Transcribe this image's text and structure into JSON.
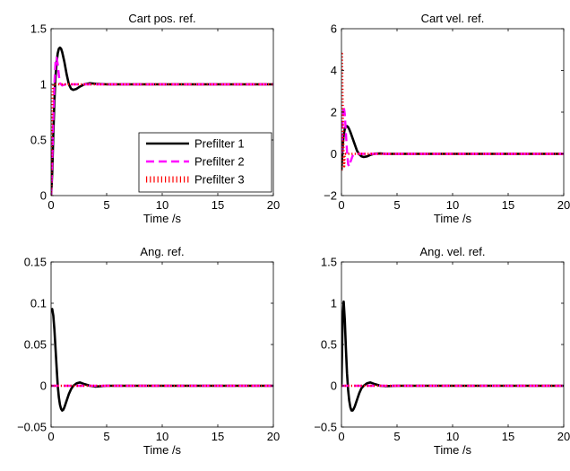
{
  "chart_data": [
    {
      "type": "line",
      "title": "Cart pos. ref.",
      "xlabel": "Time /s",
      "ylabel": "",
      "xlim": [
        0,
        20
      ],
      "ylim": [
        0,
        1.5
      ],
      "xticks": [
        0,
        5,
        10,
        15,
        20
      ],
      "xtick_labels": [
        "0",
        "5",
        "10",
        "15",
        "20"
      ],
      "yticks": [
        0,
        0.5,
        1,
        1.5
      ],
      "ytick_labels": [
        "0",
        "0.5",
        "1",
        "1.5"
      ],
      "grid": false,
      "legend": {
        "placement": "bottom-right",
        "entries": [
          "Prefilter 1",
          "Prefilter 2",
          "Prefilter 3"
        ]
      },
      "series": [
        {
          "name": "Prefilter 1",
          "color": "#000000",
          "style": "solid",
          "x": [
            0,
            0.1,
            0.2,
            0.3,
            0.4,
            0.5,
            0.6,
            0.7,
            0.8,
            0.9,
            1.0,
            1.2,
            1.4,
            1.6,
            1.8,
            2.0,
            2.3,
            2.6,
            3.0,
            3.5,
            4.0,
            5.0,
            6.0,
            20
          ],
          "y": [
            0,
            0.2,
            0.55,
            0.85,
            1.07,
            1.2,
            1.28,
            1.32,
            1.33,
            1.32,
            1.29,
            1.2,
            1.09,
            1.0,
            0.96,
            0.95,
            0.96,
            0.98,
            1.0,
            1.01,
            1.005,
            1.0,
            1.0,
            1.0
          ]
        },
        {
          "name": "Prefilter 2",
          "color": "#ff00ff",
          "style": "dashed",
          "x": [
            0,
            0.1,
            0.2,
            0.3,
            0.4,
            0.5,
            0.6,
            0.7,
            0.8,
            1.0,
            1.3,
            1.6,
            2.0,
            20
          ],
          "y": [
            0,
            0.3,
            0.7,
            1.0,
            1.2,
            1.24,
            1.18,
            1.08,
            1.01,
            0.99,
            1.0,
            1.0,
            1.0,
            1.0
          ]
        },
        {
          "name": "Prefilter 3",
          "color": "#ff0000",
          "style": "dotted",
          "x": [
            0,
            0.05,
            0.1,
            0.15,
            0.2,
            0.3,
            0.4,
            0.6,
            20
          ],
          "y": [
            0,
            0.4,
            0.75,
            0.95,
            1.0,
            1.0,
            1.0,
            1.0,
            1.0
          ]
        }
      ]
    },
    {
      "type": "line",
      "title": "Cart vel. ref.",
      "xlabel": "Time /s",
      "ylabel": "",
      "xlim": [
        0,
        20
      ],
      "ylim": [
        -2,
        6
      ],
      "xticks": [
        0,
        5,
        10,
        15,
        20
      ],
      "xtick_labels": [
        "0",
        "5",
        "10",
        "15",
        "20"
      ],
      "yticks": [
        -2,
        0,
        2,
        4,
        6
      ],
      "ytick_labels": [
        "−2",
        "0",
        "2",
        "4",
        "6"
      ],
      "grid": false,
      "series": [
        {
          "name": "Prefilter 1",
          "color": "#000000",
          "style": "solid",
          "x": [
            0,
            0.1,
            0.2,
            0.3,
            0.4,
            0.5,
            0.6,
            0.7,
            0.8,
            0.9,
            1.0,
            1.2,
            1.4,
            1.6,
            1.8,
            2.0,
            2.3,
            2.6,
            3.0,
            3.5,
            4.0,
            5.0,
            20
          ],
          "y": [
            -0.8,
            0.3,
            0.9,
            1.2,
            1.32,
            1.33,
            1.28,
            1.18,
            1.05,
            0.9,
            0.75,
            0.45,
            0.15,
            -0.02,
            -0.12,
            -0.15,
            -0.12,
            -0.05,
            0.01,
            0.02,
            0.0,
            0.0,
            0.0
          ]
        },
        {
          "name": "Prefilter 2",
          "color": "#ff00ff",
          "style": "dashed",
          "x": [
            0,
            0.1,
            0.2,
            0.3,
            0.4,
            0.5,
            0.6,
            0.7,
            0.8,
            1.0,
            1.3,
            1.6,
            20
          ],
          "y": [
            0,
            1.5,
            2.3,
            1.9,
            1.0,
            0.1,
            -0.5,
            -0.6,
            -0.4,
            -0.1,
            0.02,
            0.0,
            0.0
          ]
        },
        {
          "name": "Prefilter 3",
          "color": "#ff0000",
          "style": "dotted",
          "x": [
            0,
            0.05,
            0.1,
            0.15,
            0.2,
            0.25,
            0.3,
            0.4,
            20
          ],
          "y": [
            -0.8,
            4.8,
            3.0,
            1.0,
            0.0,
            -0.6,
            0.0,
            0.0,
            0.0
          ]
        }
      ]
    },
    {
      "type": "line",
      "title": "Ang. ref.",
      "xlabel": "Time /s",
      "ylabel": "",
      "xlim": [
        0,
        20
      ],
      "ylim": [
        -0.05,
        0.15
      ],
      "xticks": [
        0,
        5,
        10,
        15,
        20
      ],
      "xtick_labels": [
        "0",
        "5",
        "10",
        "15",
        "20"
      ],
      "yticks": [
        -0.05,
        0,
        0.05,
        0.1,
        0.15
      ],
      "ytick_labels": [
        "−0.05",
        "0",
        "0.05",
        "0.1",
        "0.15"
      ],
      "grid": false,
      "series": [
        {
          "name": "Prefilter 1",
          "color": "#000000",
          "style": "solid",
          "x": [
            0,
            0.1,
            0.2,
            0.3,
            0.4,
            0.5,
            0.6,
            0.7,
            0.8,
            0.9,
            1.0,
            1.1,
            1.2,
            1.4,
            1.6,
            1.8,
            2.0,
            2.3,
            2.6,
            3.0,
            3.5,
            4.0,
            5.0,
            20
          ],
          "y": [
            0.09,
            0.093,
            0.085,
            0.068,
            0.045,
            0.022,
            0.0,
            -0.014,
            -0.023,
            -0.028,
            -0.03,
            -0.029,
            -0.026,
            -0.018,
            -0.01,
            -0.004,
            0.0,
            0.003,
            0.004,
            0.002,
            0.0,
            -0.001,
            0.0,
            0.0
          ]
        },
        {
          "name": "Prefilter 2",
          "color": "#ff00ff",
          "style": "dashed",
          "x": [
            0,
            20
          ],
          "y": [
            0,
            0
          ]
        },
        {
          "name": "Prefilter 3",
          "color": "#ff0000",
          "style": "dotted",
          "x": [
            0,
            20
          ],
          "y": [
            0,
            0
          ]
        }
      ]
    },
    {
      "type": "line",
      "title": "Ang. vel. ref.",
      "xlabel": "Time /s",
      "ylabel": "",
      "xlim": [
        0,
        20
      ],
      "ylim": [
        -0.5,
        1.5
      ],
      "xticks": [
        0,
        5,
        10,
        15,
        20
      ],
      "xtick_labels": [
        "0",
        "5",
        "10",
        "15",
        "20"
      ],
      "yticks": [
        -0.5,
        0,
        0.5,
        1,
        1.5
      ],
      "ytick_labels": [
        "−0.5",
        "0",
        "0.5",
        "1",
        "1.5"
      ],
      "grid": false,
      "series": [
        {
          "name": "Prefilter 1",
          "color": "#000000",
          "style": "solid",
          "x": [
            0,
            0.1,
            0.2,
            0.3,
            0.4,
            0.5,
            0.6,
            0.7,
            0.8,
            0.9,
            1.0,
            1.1,
            1.2,
            1.4,
            1.6,
            1.8,
            2.0,
            2.3,
            2.6,
            3.0,
            3.5,
            4.0,
            5.0,
            20
          ],
          "y": [
            0.0,
            0.8,
            1.02,
            0.8,
            0.45,
            0.15,
            -0.05,
            -0.18,
            -0.26,
            -0.3,
            -0.3,
            -0.28,
            -0.25,
            -0.17,
            -0.09,
            -0.03,
            0.0,
            0.03,
            0.04,
            0.02,
            0.0,
            -0.005,
            0.0,
            0.0
          ]
        },
        {
          "name": "Prefilter 2",
          "color": "#ff00ff",
          "style": "dashed",
          "x": [
            0,
            20
          ],
          "y": [
            0,
            0
          ]
        },
        {
          "name": "Prefilter 3",
          "color": "#ff0000",
          "style": "dotted",
          "x": [
            0,
            20
          ],
          "y": [
            0,
            0
          ]
        }
      ]
    }
  ]
}
